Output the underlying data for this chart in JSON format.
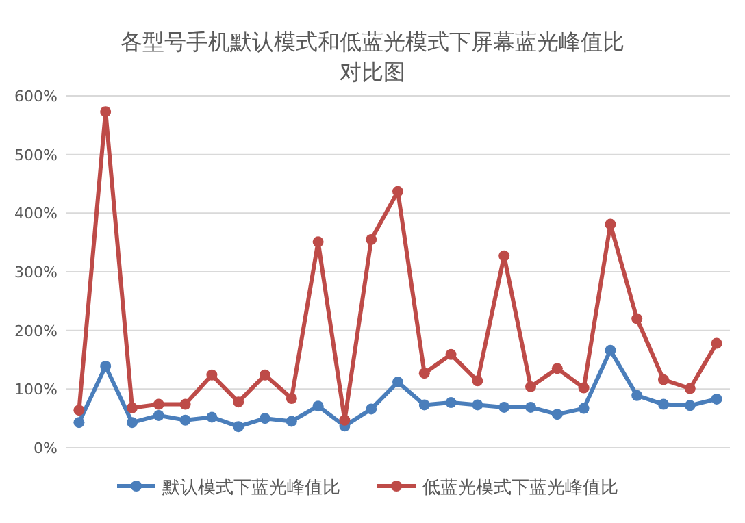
{
  "chart_data": {
    "type": "line",
    "title": "各型号手机默认模式和低蓝光模式下屏幕蓝光峰值比对比图",
    "categories": [
      null,
      null,
      null,
      null,
      null,
      null,
      null,
      null,
      null,
      null,
      null,
      null,
      null,
      null,
      null,
      null,
      null,
      null,
      null,
      null,
      null,
      null,
      null,
      null,
      null
    ],
    "series": [
      {
        "name": "默认模式下蓝光峰值比",
        "color": "#4a7ebb",
        "values": [
          43,
          139,
          43,
          55,
          47,
          52,
          36,
          50,
          45,
          71,
          37,
          66,
          112,
          73,
          77,
          73,
          69,
          69,
          57,
          67,
          166,
          89,
          74,
          72,
          83
        ]
      },
      {
        "name": "低蓝光模式下蓝光峰值比",
        "color": "#be4b48",
        "values": [
          64,
          573,
          68,
          74,
          74,
          124,
          78,
          124,
          84,
          351,
          47,
          355,
          437,
          127,
          159,
          114,
          327,
          104,
          135,
          102,
          381,
          220,
          116,
          101,
          178
        ]
      }
    ],
    "ylim": [
      0,
      600
    ],
    "yticks": [
      {
        "value": 0,
        "label": "0%"
      },
      {
        "value": 100,
        "label": "100%"
      },
      {
        "value": 200,
        "label": "200%"
      },
      {
        "value": 300,
        "label": "300%"
      },
      {
        "value": 400,
        "label": "400%"
      },
      {
        "value": 500,
        "label": "500%"
      },
      {
        "value": 600,
        "label": "600%"
      }
    ],
    "grid": "y",
    "legend": "bottom",
    "marker": "circle",
    "line_style": "solid"
  }
}
